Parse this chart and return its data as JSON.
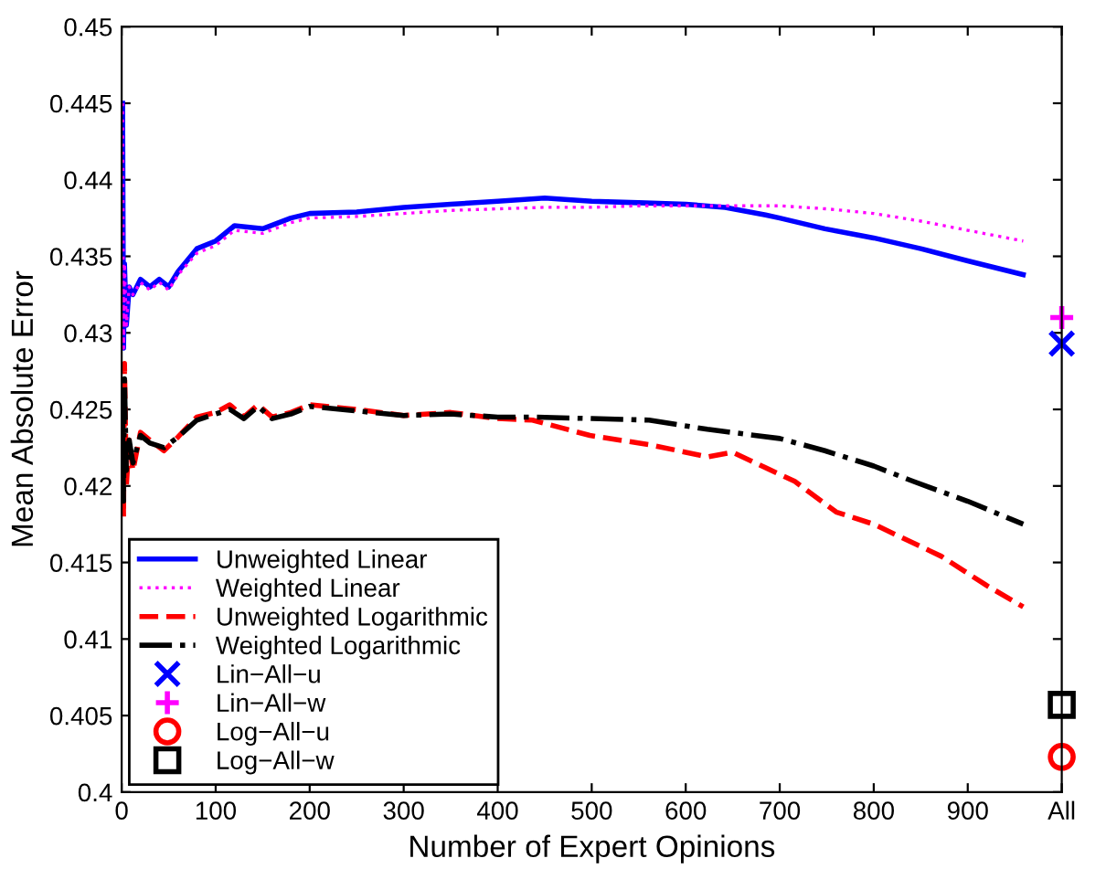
{
  "chart_data": {
    "type": "line",
    "xlabel": "Number of Expert Opinions",
    "ylabel": "Mean Absolute Error",
    "xlim": [
      0,
      1000
    ],
    "xticks": [
      0,
      100,
      200,
      300,
      400,
      500,
      600,
      700,
      800,
      900,
      {
        "value": 1000,
        "label": "All"
      }
    ],
    "ylim": [
      0.4,
      0.45
    ],
    "yticks": [
      0.4,
      0.405,
      0.41,
      0.415,
      0.42,
      0.425,
      0.43,
      0.435,
      0.44,
      0.445,
      0.45
    ],
    "grid": false,
    "legend": "bottom left",
    "series": [
      {
        "name": "Unweighted Linear",
        "color": "#0000ff",
        "line_style": "solid",
        "marker": "none",
        "x": [
          1,
          2,
          3,
          5,
          8,
          12,
          20,
          30,
          40,
          50,
          60,
          80,
          100,
          120,
          150,
          180,
          200,
          250,
          300,
          350,
          400,
          450,
          500,
          550,
          600,
          642,
          685,
          700,
          748,
          800,
          850,
          900,
          959
        ],
        "values": [
          0.445,
          0.429,
          0.4345,
          0.4305,
          0.433,
          0.4325,
          0.4335,
          0.433,
          0.4335,
          0.433,
          0.434,
          0.4355,
          0.436,
          0.437,
          0.4368,
          0.4375,
          0.4378,
          0.4379,
          0.4382,
          0.4384,
          0.4386,
          0.4388,
          0.4386,
          0.4385,
          0.4384,
          0.4382,
          0.4377,
          0.4375,
          0.4368,
          0.4362,
          0.4355,
          0.4347,
          0.4338
        ]
      },
      {
        "name": "Weighted Linear",
        "color": "#ff00ff",
        "line_style": "dotted",
        "marker": "none",
        "x": [
          1,
          2,
          3,
          5,
          8,
          12,
          20,
          30,
          40,
          50,
          60,
          80,
          100,
          120,
          150,
          180,
          200,
          250,
          300,
          350,
          400,
          450,
          500,
          550,
          600,
          650,
          700,
          750,
          800,
          850,
          900,
          959
        ],
        "values": [
          0.445,
          0.429,
          0.4345,
          0.4305,
          0.433,
          0.4325,
          0.4333,
          0.4328,
          0.4333,
          0.4328,
          0.4338,
          0.4352,
          0.4357,
          0.4367,
          0.4365,
          0.4372,
          0.4375,
          0.4376,
          0.4378,
          0.438,
          0.4381,
          0.4382,
          0.4382,
          0.4383,
          0.4383,
          0.4383,
          0.4383,
          0.4381,
          0.4378,
          0.4373,
          0.4367,
          0.436
        ]
      },
      {
        "name": "Unweighted Logarithmic",
        "color": "#ff0000",
        "line_style": "dashed",
        "marker": "none",
        "x": [
          1,
          2,
          3,
          5,
          8,
          12,
          20,
          30,
          45,
          60,
          80,
          100,
          115,
          130,
          145,
          160,
          180,
          200,
          250,
          300,
          350,
          400,
          437,
          498,
          561,
          600,
          623,
          650,
          716,
          760,
          800,
          872,
          920,
          959
        ],
        "values": [
          0.4245,
          0.418,
          0.428,
          0.42,
          0.423,
          0.421,
          0.4235,
          0.423,
          0.4223,
          0.4232,
          0.4245,
          0.4248,
          0.4253,
          0.4245,
          0.4253,
          0.4245,
          0.4248,
          0.4253,
          0.425,
          0.4246,
          0.4248,
          0.4244,
          0.4243,
          0.4233,
          0.4227,
          0.4222,
          0.4219,
          0.4222,
          0.4203,
          0.4183,
          0.4175,
          0.4154,
          0.4135,
          0.4121
        ]
      },
      {
        "name": "Weighted Logarithmic",
        "color": "#000000",
        "line_style": "dashdot",
        "marker": "none",
        "x": [
          1,
          2,
          3,
          5,
          8,
          12,
          20,
          30,
          45,
          60,
          80,
          100,
          115,
          130,
          145,
          160,
          180,
          200,
          250,
          300,
          350,
          400,
          437,
          500,
          561,
          623,
          700,
          748,
          800,
          842,
          900,
          959
        ],
        "values": [
          0.4245,
          0.419,
          0.427,
          0.421,
          0.423,
          0.4215,
          0.4233,
          0.4228,
          0.4225,
          0.4232,
          0.4243,
          0.4247,
          0.425,
          0.4244,
          0.4252,
          0.4244,
          0.4247,
          0.4252,
          0.4249,
          0.4246,
          0.4247,
          0.4245,
          0.4245,
          0.4244,
          0.4243,
          0.4237,
          0.4231,
          0.4223,
          0.4213,
          0.4203,
          0.419,
          0.4175
        ]
      },
      {
        "name": "Lin−All−u",
        "type": "scatter",
        "color": "#0000ff",
        "marker": "cross",
        "x": [
          1000
        ],
        "values": [
          0.4293
        ]
      },
      {
        "name": "Lin−All−w",
        "type": "scatter",
        "color": "#ff00ff",
        "marker": "plus",
        "x": [
          1000
        ],
        "values": [
          0.431
        ]
      },
      {
        "name": "Log−All−u",
        "type": "scatter",
        "color": "#ff0000",
        "marker": "circle",
        "x": [
          1000
        ],
        "values": [
          0.4023
        ]
      },
      {
        "name": "Log−All−w",
        "type": "scatter",
        "color": "#000000",
        "marker": "square",
        "x": [
          1000
        ],
        "values": [
          0.4057
        ]
      }
    ]
  }
}
